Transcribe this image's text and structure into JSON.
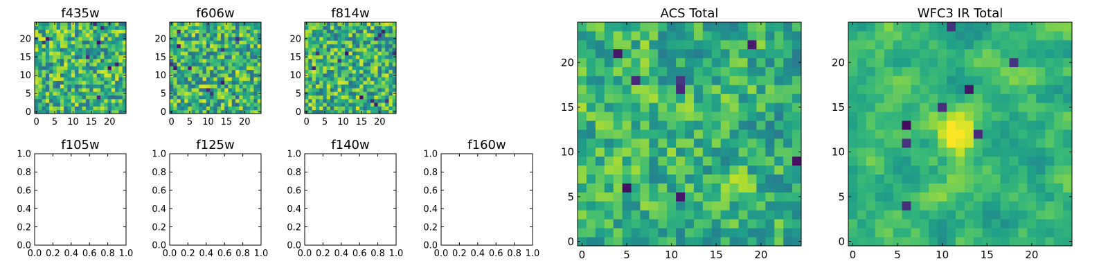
{
  "colormap": "viridis",
  "chart_data": [
    {
      "type": "heatmap",
      "title": "f435w",
      "xlim": [
        -0.5,
        24.5
      ],
      "ylim": [
        -0.5,
        24.5
      ],
      "xticks": [
        0,
        5,
        10,
        15,
        20
      ],
      "yticks": [
        0,
        5,
        10,
        15,
        20
      ],
      "grid_size": [
        25,
        25
      ],
      "seed": 11,
      "smooth": 0,
      "value_range": [
        0,
        1
      ],
      "dark_count": 9
    },
    {
      "type": "heatmap",
      "title": "f606w",
      "xlim": [
        -0.5,
        24.5
      ],
      "ylim": [
        -0.5,
        24.5
      ],
      "xticks": [
        0,
        5,
        10,
        15,
        20
      ],
      "yticks": [
        0,
        5,
        10,
        15,
        20
      ],
      "grid_size": [
        25,
        25
      ],
      "seed": 23,
      "smooth": 0,
      "value_range": [
        0,
        1
      ],
      "dark_count": 10
    },
    {
      "type": "heatmap",
      "title": "f814w",
      "xlim": [
        -0.5,
        24.5
      ],
      "ylim": [
        -0.5,
        24.5
      ],
      "xticks": [
        0,
        5,
        10,
        15,
        20
      ],
      "yticks": [
        0,
        5,
        10,
        15,
        20
      ],
      "grid_size": [
        25,
        25
      ],
      "seed": 37,
      "smooth": 0,
      "value_range": [
        0,
        1
      ],
      "dark_count": 12
    },
    {
      "type": "empty",
      "title": "f105w",
      "xlim": [
        0,
        1
      ],
      "ylim": [
        0,
        1
      ],
      "xticks": [
        "0.0",
        "0.2",
        "0.4",
        "0.6",
        "0.8",
        "1.0"
      ],
      "yticks": [
        "0.0",
        "0.2",
        "0.4",
        "0.6",
        "0.8",
        "1.0"
      ]
    },
    {
      "type": "empty",
      "title": "f125w",
      "xlim": [
        0,
        1
      ],
      "ylim": [
        0,
        1
      ],
      "xticks": [
        "0.0",
        "0.2",
        "0.4",
        "0.6",
        "0.8",
        "1.0"
      ],
      "yticks": [
        "0.0",
        "0.2",
        "0.4",
        "0.6",
        "0.8",
        "1.0"
      ]
    },
    {
      "type": "empty",
      "title": "f140w",
      "xlim": [
        0,
        1
      ],
      "ylim": [
        0,
        1
      ],
      "xticks": [
        "0.0",
        "0.2",
        "0.4",
        "0.6",
        "0.8",
        "1.0"
      ],
      "yticks": [
        "0.0",
        "0.2",
        "0.4",
        "0.6",
        "0.8",
        "1.0"
      ]
    },
    {
      "type": "empty",
      "title": "f160w",
      "xlim": [
        0,
        1
      ],
      "ylim": [
        0,
        1
      ],
      "xticks": [
        "0.0",
        "0.2",
        "0.4",
        "0.6",
        "0.8",
        "1.0"
      ],
      "yticks": [
        "0.0",
        "0.2",
        "0.4",
        "0.6",
        "0.8",
        "1.0"
      ]
    },
    {
      "type": "heatmap",
      "title": "ACS Total",
      "xlim": [
        -0.5,
        24.5
      ],
      "ylim": [
        -0.5,
        24.5
      ],
      "xticks": [
        0,
        5,
        10,
        15,
        20
      ],
      "yticks": [
        0,
        5,
        10,
        15,
        20
      ],
      "grid_size": [
        25,
        25
      ],
      "seed": 53,
      "smooth": 0.35,
      "value_range": [
        0,
        1
      ],
      "dark_count": 8
    },
    {
      "type": "heatmap",
      "title": "WFC3 IR Total",
      "xlim": [
        -0.5,
        24.5
      ],
      "ylim": [
        -0.5,
        24.5
      ],
      "xticks": [
        0,
        5,
        10,
        15,
        20
      ],
      "yticks": [
        0,
        5,
        10,
        15,
        20
      ],
      "grid_size": [
        25,
        25
      ],
      "seed": 71,
      "smooth": 0.75,
      "value_range": [
        0,
        1
      ],
      "dark_count": 8,
      "bright_blob": [
        12,
        12
      ]
    }
  ]
}
